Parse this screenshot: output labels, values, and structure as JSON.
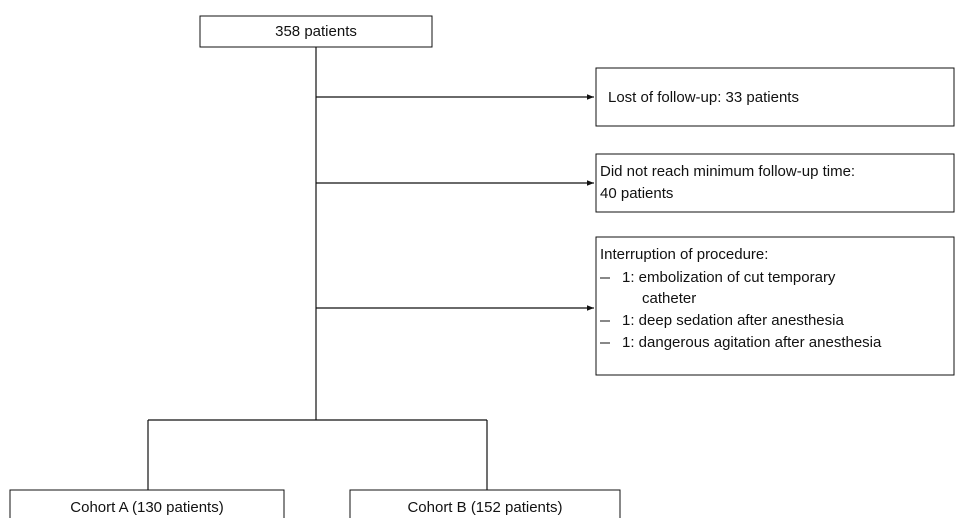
{
  "root": {
    "label": "358 patients"
  },
  "exclusions": [
    {
      "lines": [
        "Lost of follow-up: 33 patients"
      ]
    },
    {
      "lines": [
        "Did not reach minimum follow-up time:",
        "40 patients"
      ]
    },
    {
      "title": "Interruption of procedure:",
      "items": [
        [
          "1: embolization of cut temporary",
          "catheter"
        ],
        [
          "1: deep sedation after anesthesia"
        ],
        [
          "1: dangerous agitation after anesthesia"
        ]
      ]
    }
  ],
  "cohorts": [
    {
      "label": "Cohort A (130 patients)"
    },
    {
      "label": "Cohort B (152 patients)"
    }
  ]
}
